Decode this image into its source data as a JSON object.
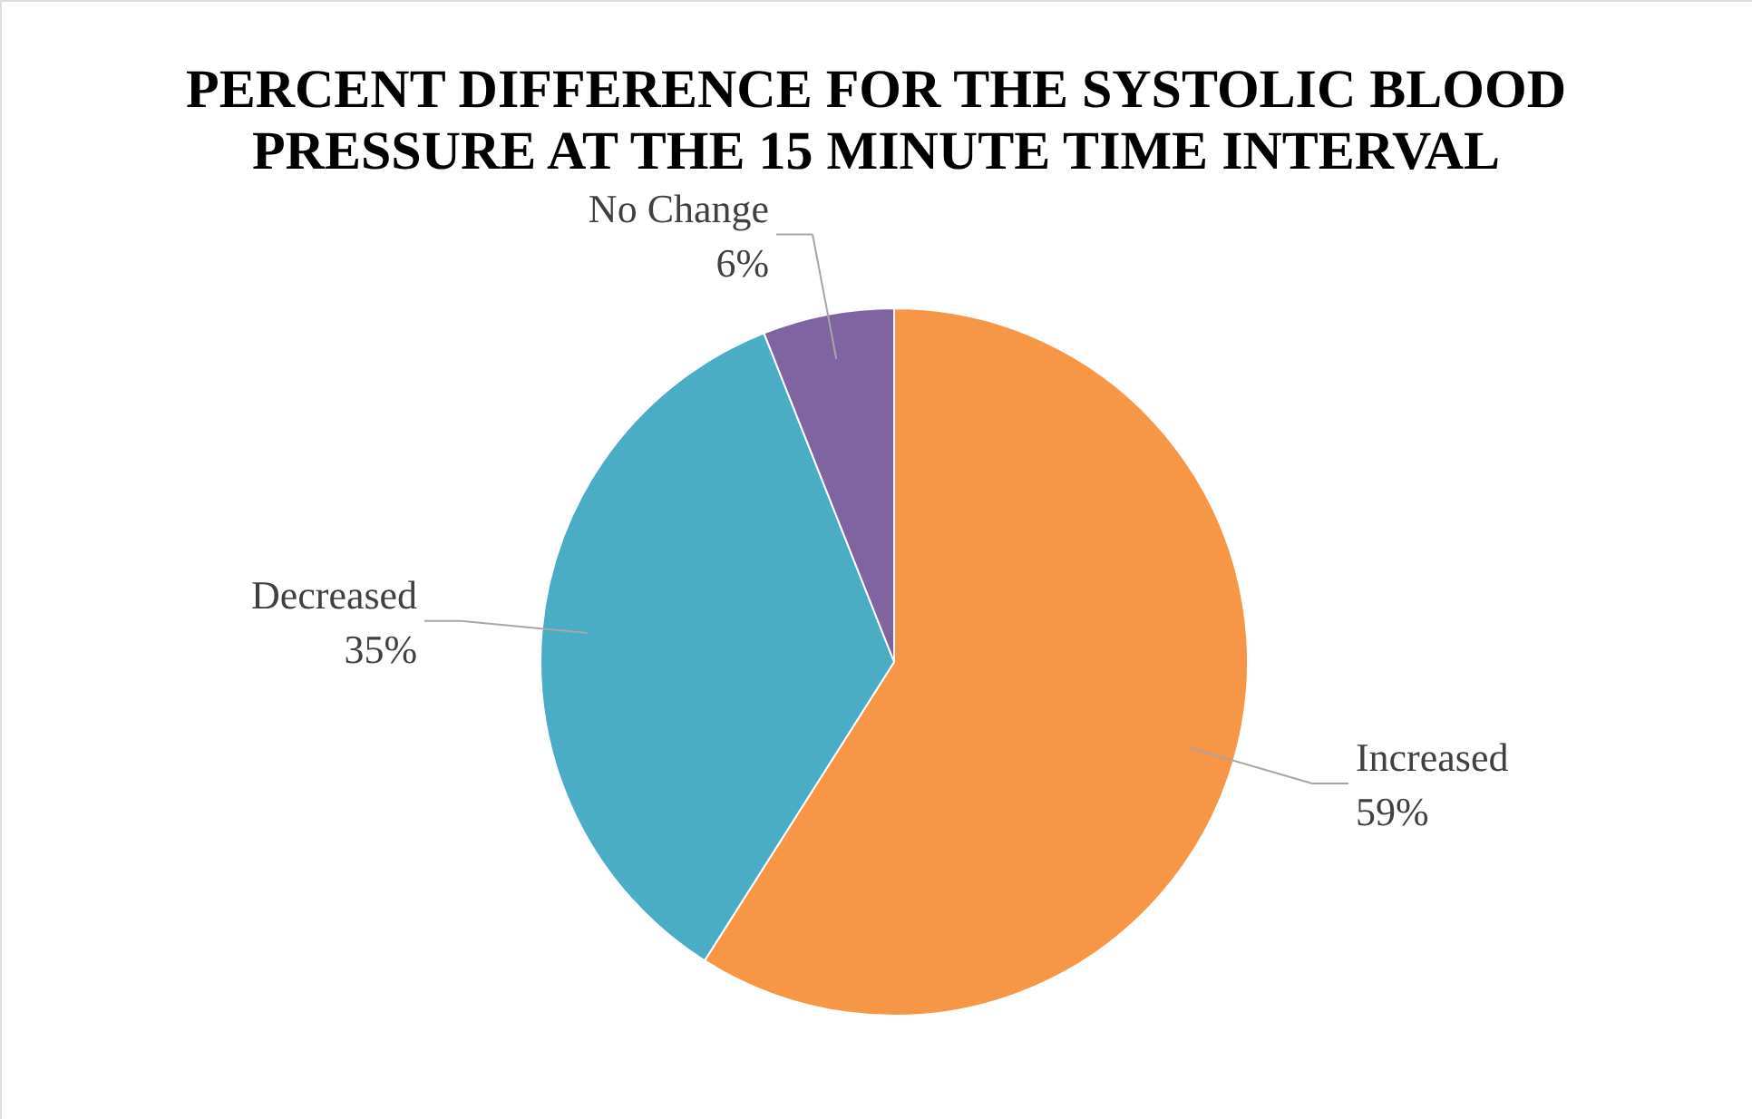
{
  "chart_data": {
    "type": "pie",
    "title": "PERCENT DIFFERENCE FOR THE SYSTOLIC BLOOD PRESSURE AT THE 15 MINUTE TIME INTERVAL",
    "categories": [
      "Increased",
      "Decreased",
      "No Change"
    ],
    "values": [
      59,
      35,
      6
    ],
    "colors": [
      "#f79646",
      "#4bacc6",
      "#8064a2"
    ],
    "value_labels": [
      "59%",
      "35%",
      "6%"
    ]
  }
}
